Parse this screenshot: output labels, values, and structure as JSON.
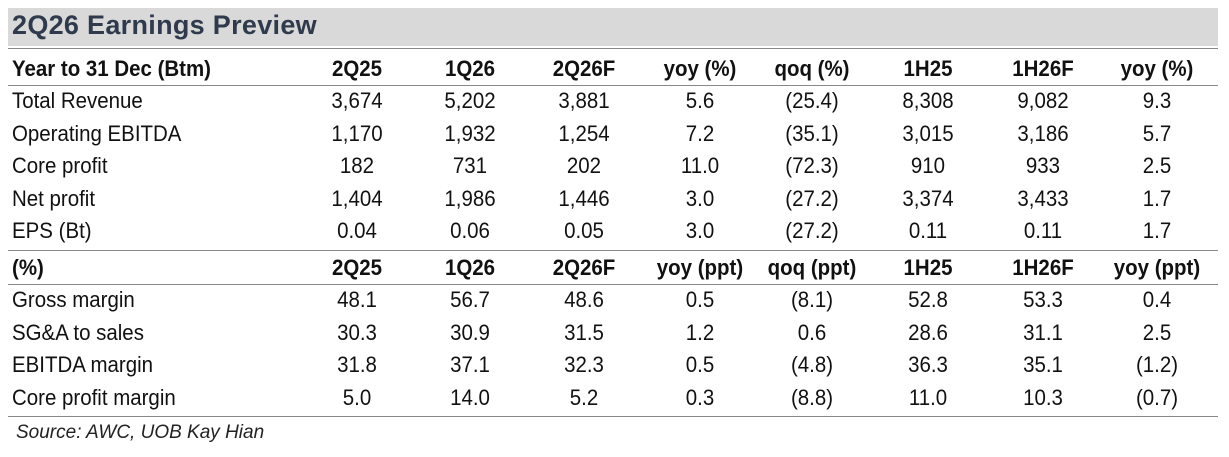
{
  "title": "2Q26 Earnings Preview",
  "table": {
    "sections": [
      {
        "header": [
          "Year to 31 Dec (Btm)",
          "2Q25",
          "1Q26",
          "2Q26F",
          "yoy (%)",
          "qoq (%)",
          "1H25",
          "1H26F",
          "yoy (%)"
        ],
        "rows": [
          [
            "Total Revenue",
            "3,674",
            "5,202",
            "3,881",
            "5.6",
            "(25.4)",
            "8,308",
            "9,082",
            "9.3"
          ],
          [
            "Operating EBITDA",
            "1,170",
            "1,932",
            "1,254",
            "7.2",
            "(35.1)",
            "3,015",
            "3,186",
            "5.7"
          ],
          [
            "Core profit",
            "182",
            "731",
            "202",
            "11.0",
            "(72.3)",
            "910",
            "933",
            "2.5"
          ],
          [
            "Net profit",
            "1,404",
            "1,986",
            "1,446",
            "3.0",
            "(27.2)",
            "3,374",
            "3,433",
            "1.7"
          ],
          [
            "EPS (Bt)",
            "0.04",
            "0.06",
            "0.05",
            "3.0",
            "(27.2)",
            "0.11",
            "0.11",
            "1.7"
          ]
        ]
      },
      {
        "header": [
          "(%)",
          "2Q25",
          "1Q26",
          "2Q26F",
          "yoy (ppt)",
          "qoq (ppt)",
          "1H25",
          "1H26F",
          "yoy (ppt)"
        ],
        "rows": [
          [
            "Gross margin",
            "48.1",
            "56.7",
            "48.6",
            "0.5",
            "(8.1)",
            "52.8",
            "53.3",
            "0.4"
          ],
          [
            "SG&A to sales",
            "30.3",
            "30.9",
            "31.5",
            "1.2",
            "0.6",
            "28.6",
            "31.1",
            "2.5"
          ],
          [
            "EBITDA margin",
            "31.8",
            "37.1",
            "32.3",
            "0.5",
            "(4.8)",
            "36.3",
            "35.1",
            "(1.2)"
          ],
          [
            "Core profit margin",
            "5.0",
            "14.0",
            "5.2",
            "0.3",
            "(8.8)",
            "11.0",
            "10.3",
            "(0.7)"
          ]
        ]
      }
    ]
  },
  "source": "Source: AWC, UOB Kay Hian"
}
